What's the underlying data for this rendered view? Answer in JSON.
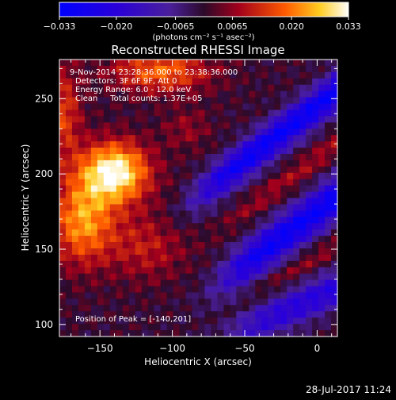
{
  "chart_data": {
    "type": "heatmap",
    "title": "Reconstructed RHESSI Image",
    "xlabel": "Heliocentric X (arcsec)",
    "ylabel": "Heliocentric Y (arcsec)",
    "xlim": [
      -178,
      14
    ],
    "ylim": [
      92,
      276
    ],
    "xticks": [
      -150,
      -100,
      -50,
      0
    ],
    "xtick_labels": [
      "−150",
      "−100",
      "−50",
      "0"
    ],
    "yticks": [
      100,
      150,
      200,
      250
    ],
    "ytick_labels": [
      "100",
      "150",
      "200",
      "250"
    ],
    "colorbar": {
      "range": [
        -0.033,
        0.033
      ],
      "ticks": [
        -0.033,
        -0.02,
        -0.0065,
        0.0065,
        0.02,
        0.033
      ],
      "tick_labels": [
        "−0.033",
        "−0.020",
        "−0.0065",
        "0.0065",
        "0.020",
        "0.033"
      ],
      "units_label": "(photons cm⁻² s⁻¹ asec⁻²)"
    },
    "annotations": {
      "time_range": "9-Nov-2014 23:28:36.000 to 23:38:36.000",
      "detectors": "Detectors: 3F 6F 9F, Att 0",
      "energy_range": "Energy Range: 6.0 - 12.0 keV",
      "clean_counts": "Clean     Total counts: 1.37E+05",
      "peak_position": "Position of Peak = [-140,201]"
    },
    "peak": {
      "x": -140,
      "y": 201,
      "value": 0.033
    }
  },
  "footer": {
    "timestamp": "28-Jul-2017 11:24"
  }
}
